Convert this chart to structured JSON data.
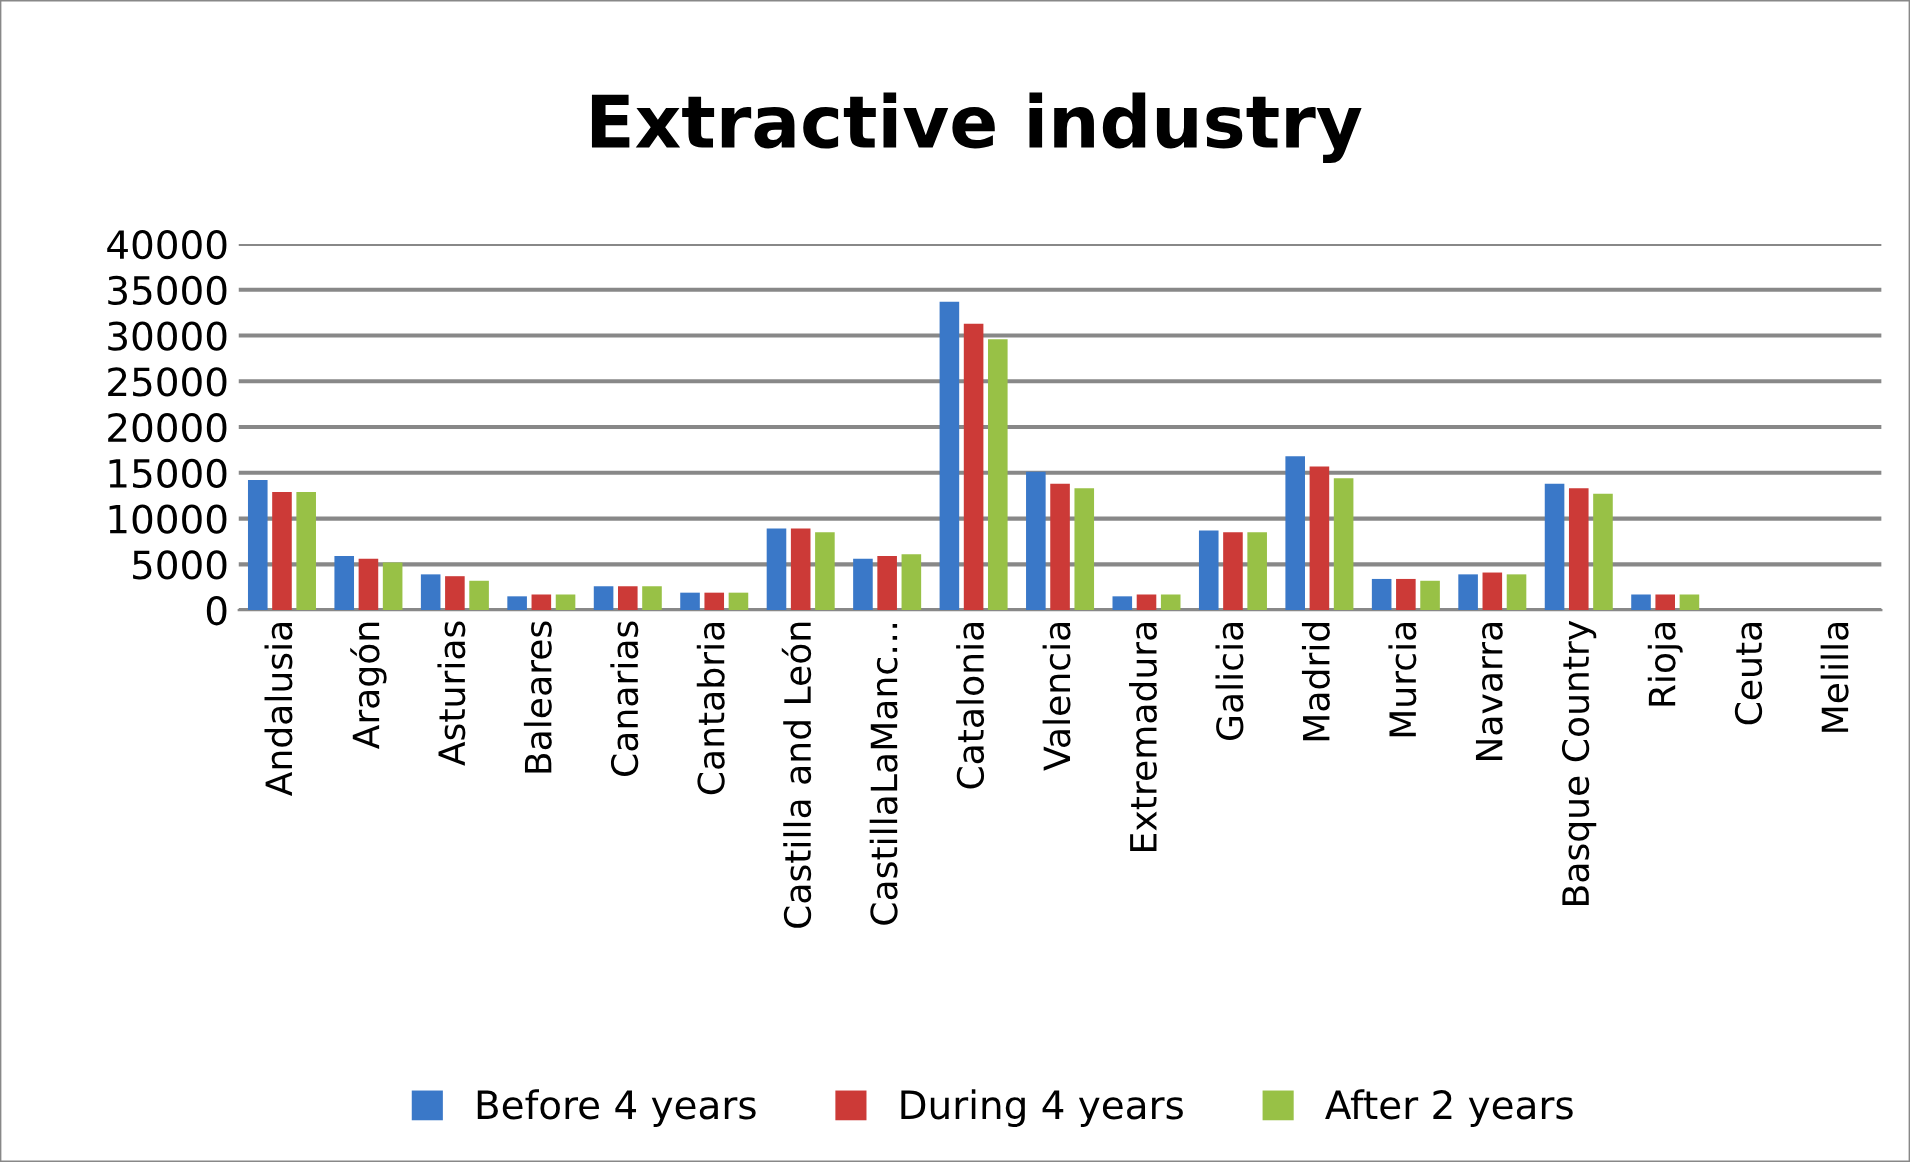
{
  "chart_data": {
    "type": "bar",
    "title": "Extractive industry",
    "categories": [
      "Andalusia",
      "Aragón",
      "Asturias",
      "Baleares",
      "Canarias",
      "Cantabria",
      "Castilla and León",
      "CastillaLaManc…",
      "Catalonia",
      "Valencia",
      "Extremadura",
      "Galicia",
      "Madrid",
      "Murcia",
      "Navarra",
      "Basque Country",
      "Rioja",
      "Ceuta",
      "Melilla"
    ],
    "series": [
      {
        "name": "Before 4 years",
        "color": "#3a78c8",
        "values": [
          14200,
          5900,
          3900,
          1500,
          2600,
          1900,
          8900,
          5600,
          33700,
          15100,
          1500,
          8700,
          16800,
          3400,
          3900,
          13800,
          1700,
          0,
          0
        ]
      },
      {
        "name": "During 4 years",
        "color": "#cc3a37",
        "values": [
          12900,
          5600,
          3700,
          1700,
          2600,
          1900,
          8900,
          5900,
          31300,
          13800,
          1700,
          8500,
          15700,
          3400,
          4100,
          13300,
          1700,
          0,
          0
        ]
      },
      {
        "name": "After 2 years",
        "color": "#98c146",
        "values": [
          12900,
          5200,
          3200,
          1700,
          2600,
          1900,
          8500,
          6100,
          29600,
          13300,
          1700,
          8500,
          14400,
          3200,
          3900,
          12700,
          1700,
          0,
          0
        ]
      }
    ],
    "ylim": [
      0,
      40000
    ],
    "yticks": [
      0,
      5000,
      10000,
      15000,
      20000,
      25000,
      30000,
      35000,
      40000
    ],
    "grid": "y",
    "legend": "bottom"
  }
}
